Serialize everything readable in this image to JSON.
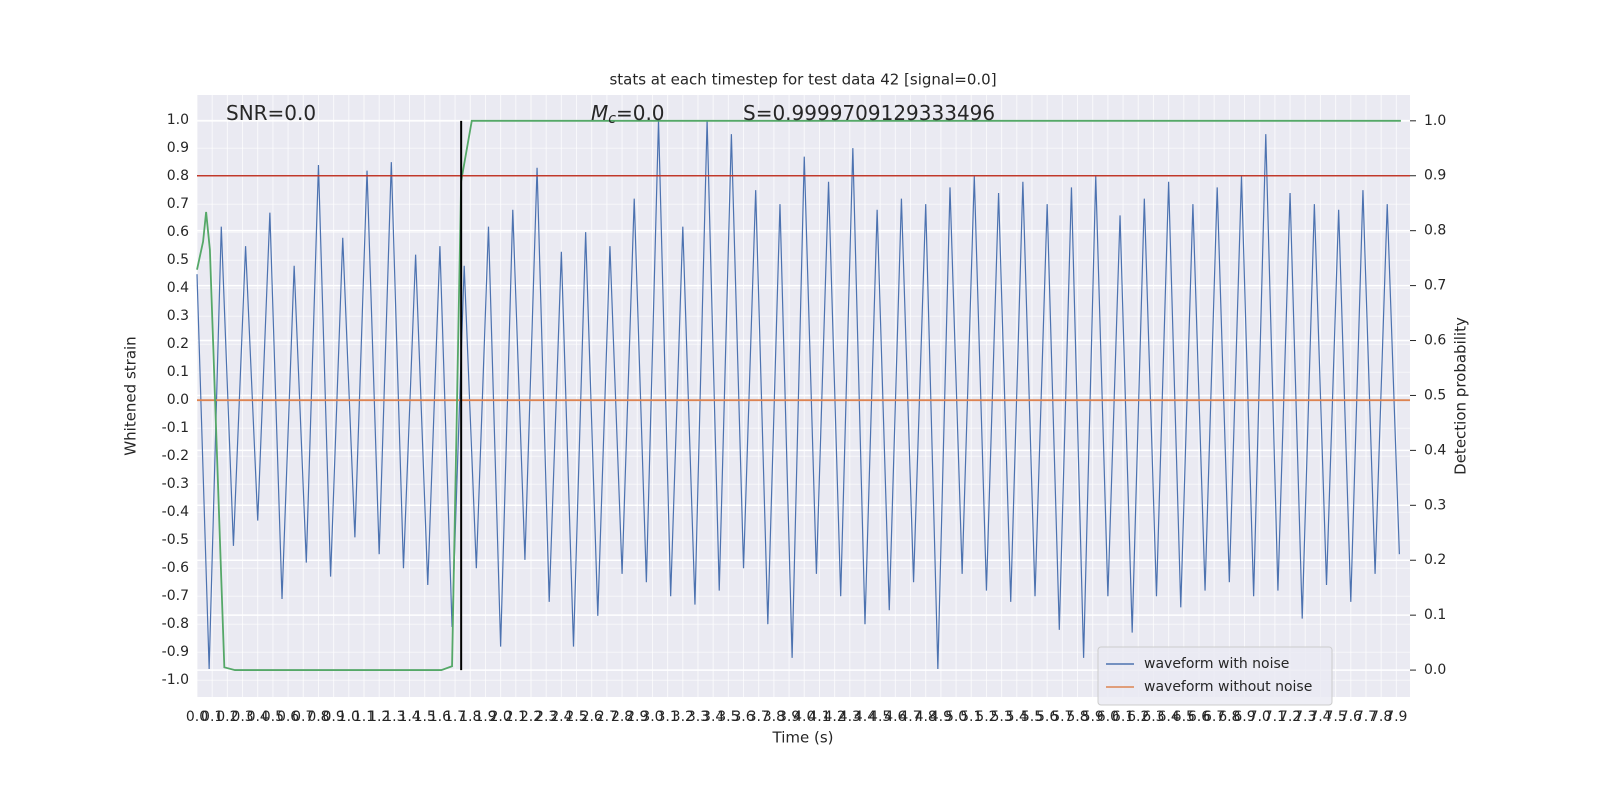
{
  "chart_data": {
    "type": "line",
    "title": "stats at each timestep for test data 42 [signal=0.0]",
    "xlabel": "Time (s)",
    "ylabel": "Whitened strain",
    "y2label": "Detection probability",
    "annotations": [
      {
        "text": "SNR=0.0"
      },
      {
        "symbol": "M",
        "subscript": "c",
        "text": "=0.0"
      },
      {
        "text": "S=0.9999709129333496"
      }
    ],
    "xlim": [
      0,
      7.99
    ],
    "ylim": [
      -1.06,
      1.09
    ],
    "y2lim": [
      -0.049,
      1.047
    ],
    "xticks": [
      {
        "value": 0,
        "label": "0.0"
      },
      0.1,
      0.2,
      0.3,
      0.4,
      0.5,
      0.6,
      0.7,
      0.8,
      0.9,
      {
        "value": 1,
        "label": "1.0"
      },
      1.1,
      1.2,
      1.3,
      1.4,
      1.5,
      1.6,
      1.7,
      1.8,
      1.9,
      {
        "value": 2,
        "label": "2.0"
      },
      2.1,
      2.2,
      2.3,
      2.4,
      2.5,
      2.6,
      2.7,
      2.8,
      2.9,
      {
        "value": 3,
        "label": "3.0"
      },
      3.1,
      3.2,
      3.3,
      3.4,
      3.5,
      3.6,
      3.7,
      3.8,
      3.9,
      {
        "value": 4,
        "label": "4.0"
      },
      4.1,
      4.2,
      4.3,
      4.4,
      4.5,
      4.6,
      4.7,
      4.8,
      4.9,
      {
        "value": 5,
        "label": "5.0"
      },
      5.1,
      5.2,
      5.3,
      5.4,
      5.5,
      5.6,
      5.7,
      5.8,
      5.9,
      {
        "value": 6,
        "label": "6.0"
      },
      6.1,
      6.2,
      6.3,
      6.4,
      6.5,
      6.6,
      6.7,
      6.8,
      6.9,
      {
        "value": 7,
        "label": "7.0"
      },
      7.1,
      7.2,
      7.3,
      7.4,
      7.5,
      7.6,
      7.7,
      7.8,
      7.9
    ],
    "yticks": [
      {
        "value": -1,
        "label": "-1.0"
      },
      -0.9,
      -0.8,
      -0.7,
      -0.6,
      -0.5,
      -0.4,
      -0.3,
      -0.2,
      -0.1,
      {
        "value": 0,
        "label": "0.0"
      },
      0.1,
      0.2,
      0.3,
      0.4,
      0.5,
      0.6,
      0.7,
      0.8,
      0.9,
      {
        "value": 1,
        "label": "1.0"
      }
    ],
    "y2ticks": [
      {
        "value": 0,
        "label": "0.0"
      },
      0.1,
      0.2,
      0.3,
      0.4,
      0.5,
      0.6,
      0.7,
      0.8,
      0.9,
      {
        "value": 1,
        "label": "1.0"
      }
    ],
    "grid": true,
    "legend": "lower right",
    "series": [
      {
        "name": "waveform with noise",
        "color": "#4c72b0",
        "x": [
          0,
          0.08,
          0.16,
          0.24,
          0.32,
          0.4,
          0.48,
          0.56,
          0.64,
          0.72,
          0.8,
          0.88,
          0.96,
          1.04,
          1.12,
          1.2,
          1.28,
          1.36,
          1.44,
          1.52,
          1.6,
          1.68,
          1.76,
          1.84,
          1.92,
          2,
          2.08,
          2.16,
          2.24,
          2.32,
          2.4,
          2.48,
          2.56,
          2.64,
          2.72,
          2.8,
          2.88,
          2.96,
          3.04,
          3.12,
          3.2,
          3.28,
          3.36,
          3.44,
          3.52,
          3.6,
          3.68,
          3.76,
          3.84,
          3.92,
          4,
          4.08,
          4.16,
          4.24,
          4.32,
          4.4,
          4.48,
          4.56,
          4.64,
          4.72,
          4.8,
          4.88,
          4.96,
          5.04,
          5.12,
          5.2,
          5.28,
          5.36,
          5.44,
          5.52,
          5.6,
          5.68,
          5.76,
          5.84,
          5.92,
          6,
          6.08,
          6.16,
          6.24,
          6.32,
          6.4,
          6.48,
          6.56,
          6.64,
          6.72,
          6.8,
          6.88,
          6.96,
          7.04,
          7.12,
          7.2,
          7.28,
          7.36,
          7.44,
          7.52,
          7.6,
          7.68,
          7.76,
          7.84,
          7.92
        ],
        "values": [
          0.45,
          -0.96,
          0.62,
          -0.52,
          0.55,
          -0.43,
          0.67,
          -0.71,
          0.48,
          -0.58,
          0.84,
          -0.63,
          0.58,
          -0.49,
          0.82,
          -0.55,
          0.85,
          -0.6,
          0.52,
          -0.66,
          0.55,
          -0.81,
          0.48,
          -0.6,
          0.62,
          -0.88,
          0.68,
          -0.57,
          0.83,
          -0.72,
          0.53,
          -0.88,
          0.6,
          -0.77,
          0.55,
          -0.62,
          0.72,
          -0.65,
          1.0,
          -0.7,
          0.62,
          -0.73,
          1.0,
          -0.68,
          0.95,
          -0.6,
          0.75,
          -0.8,
          0.7,
          -0.92,
          0.87,
          -0.62,
          0.78,
          -0.7,
          0.9,
          -0.8,
          0.68,
          -0.75,
          0.72,
          -0.65,
          0.7,
          -0.96,
          0.76,
          -0.62,
          0.8,
          -0.68,
          0.74,
          -0.72,
          0.78,
          -0.7,
          0.7,
          -0.82,
          0.76,
          -0.92,
          0.8,
          -0.7,
          0.66,
          -0.83,
          0.72,
          -0.7,
          0.78,
          -0.74,
          0.7,
          -0.68,
          0.76,
          -0.65,
          0.8,
          -0.7,
          0.95,
          -0.68,
          0.74,
          -0.78,
          0.7,
          -0.66,
          0.68,
          -0.72,
          0.75,
          -0.62,
          0.7,
          -0.55
        ]
      },
      {
        "name": "waveform without noise",
        "color": "#dd8452",
        "x": [
          0,
          7.99
        ],
        "values": [
          0,
          0
        ]
      },
      {
        "color": "#55a868",
        "axis": "y2",
        "x": [
          0,
          0.04,
          0.06,
          0.085,
          0.18,
          0.25,
          1.61,
          1.68,
          1.74,
          1.81,
          7.93
        ],
        "values": [
          0.729,
          0.78,
          0.834,
          0.765,
          0.005,
          0,
          0,
          0.007,
          0.89,
          1,
          1
        ]
      }
    ],
    "hlines": [
      {
        "value": 0.9,
        "axis": "y2",
        "color": "#c0392b"
      }
    ],
    "vlines": [
      {
        "value": 1.74,
        "color": "#000000",
        "ymin": 0,
        "ymax": 1
      }
    ]
  }
}
